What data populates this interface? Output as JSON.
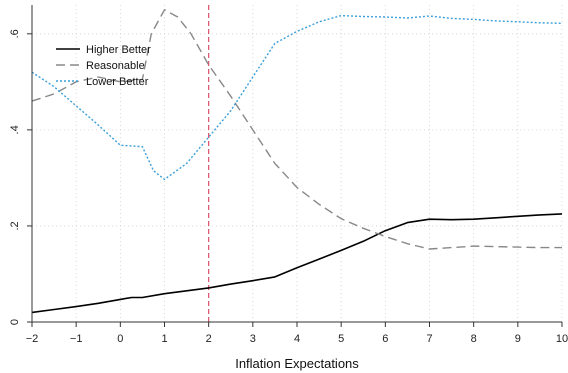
{
  "chart_data": {
    "type": "line",
    "title": "",
    "xlabel": "Inflation Expectations",
    "ylabel": "",
    "xlim": [
      -2,
      10
    ],
    "ylim": [
      0,
      0.66
    ],
    "x_ticks": [
      -2,
      -1,
      0,
      1,
      2,
      3,
      4,
      5,
      6,
      7,
      8,
      9,
      10
    ],
    "x_tick_labels": [
      "−2",
      "−1",
      "0",
      "1",
      "2",
      "3",
      "4",
      "5",
      "6",
      "7",
      "8",
      "9",
      "10"
    ],
    "y_ticks": [
      0,
      0.2,
      0.4,
      0.6
    ],
    "y_tick_labels": [
      "0",
      ".2",
      ".4",
      ".6"
    ],
    "grid": true,
    "legend_position": "top-left",
    "reference_line": {
      "x": 2,
      "color": "#d94f6a"
    },
    "series": [
      {
        "name": "Higher Better",
        "color": "#000000",
        "dash": "solid",
        "x": [
          -2,
          -1.5,
          -1,
          -0.5,
          0,
          0.25,
          0.5,
          1,
          1.5,
          2,
          2.5,
          3,
          3.5,
          4,
          4.5,
          5,
          5.5,
          6,
          6.5,
          7,
          7.5,
          8,
          8.5,
          9,
          9.5,
          10
        ],
        "y": [
          0.02,
          0.026,
          0.032,
          0.039,
          0.047,
          0.051,
          0.051,
          0.059,
          0.065,
          0.071,
          0.079,
          0.086,
          0.094,
          0.113,
          0.131,
          0.149,
          0.168,
          0.19,
          0.207,
          0.214,
          0.213,
          0.214,
          0.217,
          0.22,
          0.223,
          0.225
        ]
      },
      {
        "name": "Reasonable",
        "color": "#888888",
        "dash": "dashed",
        "x": [
          -2,
          -1.5,
          -1.2,
          -1,
          -0.5,
          0,
          0.5,
          0.7,
          1,
          1.3,
          1.6,
          2,
          2.5,
          3,
          3.5,
          4,
          4.5,
          5,
          5.5,
          6,
          6.5,
          7,
          7.5,
          8,
          8.5,
          9,
          9.5,
          10
        ],
        "y": [
          0.46,
          0.475,
          0.49,
          0.5,
          0.51,
          0.5,
          0.505,
          0.6,
          0.65,
          0.635,
          0.6,
          0.535,
          0.47,
          0.4,
          0.33,
          0.28,
          0.245,
          0.215,
          0.195,
          0.178,
          0.163,
          0.152,
          0.155,
          0.158,
          0.157,
          0.156,
          0.155,
          0.155
        ]
      },
      {
        "name": "Lower Better",
        "color": "#3a9fd9",
        "dash": "dotted",
        "x": [
          -2,
          -1.5,
          -1,
          -0.5,
          0,
          0.5,
          0.75,
          1,
          1.5,
          2,
          2.5,
          3,
          3.5,
          4,
          4.5,
          5,
          5.5,
          6,
          6.5,
          7,
          7.5,
          8,
          8.5,
          9,
          9.5,
          10
        ],
        "y": [
          0.52,
          0.49,
          0.45,
          0.41,
          0.368,
          0.365,
          0.315,
          0.297,
          0.33,
          0.385,
          0.44,
          0.51,
          0.58,
          0.605,
          0.625,
          0.638,
          0.636,
          0.635,
          0.633,
          0.637,
          0.632,
          0.63,
          0.627,
          0.625,
          0.623,
          0.622
        ]
      }
    ]
  }
}
